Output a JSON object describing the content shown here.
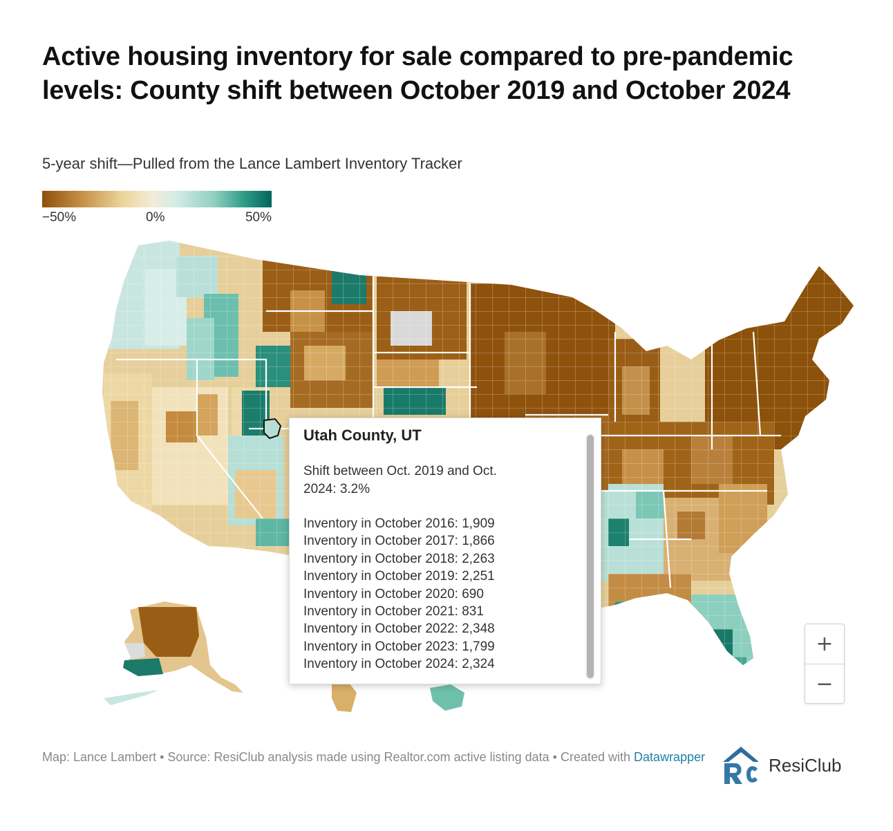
{
  "header": {
    "title": "Active housing inventory for sale compared to pre-pandemic levels: County shift between October 2019 and October 2024",
    "subtitle": "5-year shift—Pulled from the Lance Lambert Inventory Tracker"
  },
  "legend": {
    "min_label": "−50%",
    "mid_label": "0%",
    "max_label": "50%",
    "colors": [
      "#8c510a",
      "#ecd59b",
      "#f2ecd6",
      "#8fd0c2",
      "#01665e"
    ]
  },
  "map": {
    "no_data_color": "#e0e0e0",
    "highlighted_region": "Utah County, UT"
  },
  "tooltip": {
    "title": "Utah County, UT",
    "shift_text": "Shift between Oct. 2019 and Oct. 2024: 3.2%",
    "rows": [
      "Inventory in October 2016: 1,909",
      "Inventory in October 2017: 1,866",
      "Inventory in October 2018: 2,263",
      "Inventory in October 2019: 2,251",
      "Inventory in October 2020: 690",
      "Inventory in October 2021: 831",
      "Inventory in October 2022: 2,348",
      "Inventory in October 2023: 1,799",
      "Inventory in October 2024: 2,324"
    ]
  },
  "zoom": {
    "in_label": "+",
    "out_label": "−"
  },
  "footer": {
    "text": "Map: Lance Lambert • Source: ResiClub analysis made using Realtor.com active listing data • Created with",
    "link": "Datawrapper"
  },
  "logo": {
    "text": "ResiClub",
    "icon": "resiclub-house-logo-icon"
  }
}
